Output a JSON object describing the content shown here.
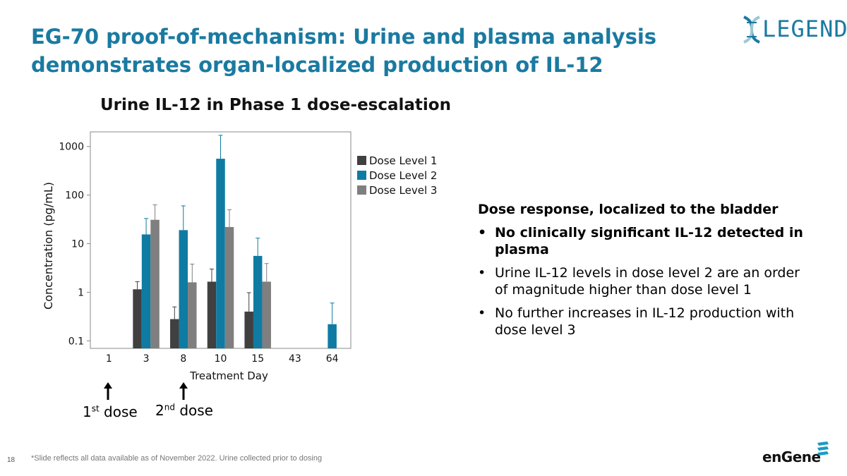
{
  "slide": {
    "title": "EG-70 proof-of-mechanism: Urine and plasma analysis demonstrates organ-localized production of IL-12",
    "page_number": "18",
    "footnote": "*Slide reflects all data available as of November 2022. Urine collected prior to dosing",
    "logo_top": "LEGEND",
    "logo_bottom": "enGene",
    "colors": {
      "title": "#1a7aa1",
      "dose1": "#404040",
      "dose2": "#0f7ba3",
      "dose3": "#7f7f7f"
    }
  },
  "right_panel": {
    "heading": "Dose response, localized to the bladder",
    "bullets": [
      "No clinically significant IL-12 detected in plasma",
      "Urine IL-12 levels in dose level 2 are an order of magnitude higher than dose level 1",
      "No further increases in IL-12 production with dose level 3"
    ]
  },
  "annotations": {
    "first_dose": {
      "num": "1",
      "sup": "st",
      "text": " dose"
    },
    "second_dose": {
      "num": "2",
      "sup": "nd",
      "text": " dose"
    }
  },
  "chart_data": {
    "type": "bar",
    "title": "Urine IL-12 in Phase 1 dose-escalation",
    "xlabel": "Treatment Day",
    "ylabel": "Concentration (pg/mL)",
    "yscale": "log",
    "ylim": [
      0.07,
      2000
    ],
    "yticks": [
      0.1,
      1,
      10,
      100,
      1000
    ],
    "ytick_labels": [
      "0.1",
      "1",
      "10",
      "100",
      "1000"
    ],
    "categories": [
      "1",
      "3",
      "8",
      "10",
      "15",
      "43",
      "64"
    ],
    "legend_position": "right",
    "series": [
      {
        "name": "Dose Level 1",
        "values": [
          null,
          1.15,
          0.28,
          1.65,
          0.4,
          null,
          null
        ],
        "error_upper": [
          null,
          1.65,
          0.5,
          3.0,
          0.98,
          null,
          null
        ]
      },
      {
        "name": "Dose Level 2",
        "values": [
          null,
          15.5,
          19,
          560,
          5.6,
          null,
          0.22
        ],
        "error_upper": [
          null,
          33,
          60,
          1700,
          13,
          null,
          0.6
        ]
      },
      {
        "name": "Dose Level 3",
        "values": [
          null,
          31,
          1.6,
          22,
          1.65,
          null,
          null
        ],
        "error_upper": [
          null,
          63,
          3.8,
          50,
          3.9,
          null,
          null
        ]
      }
    ]
  }
}
